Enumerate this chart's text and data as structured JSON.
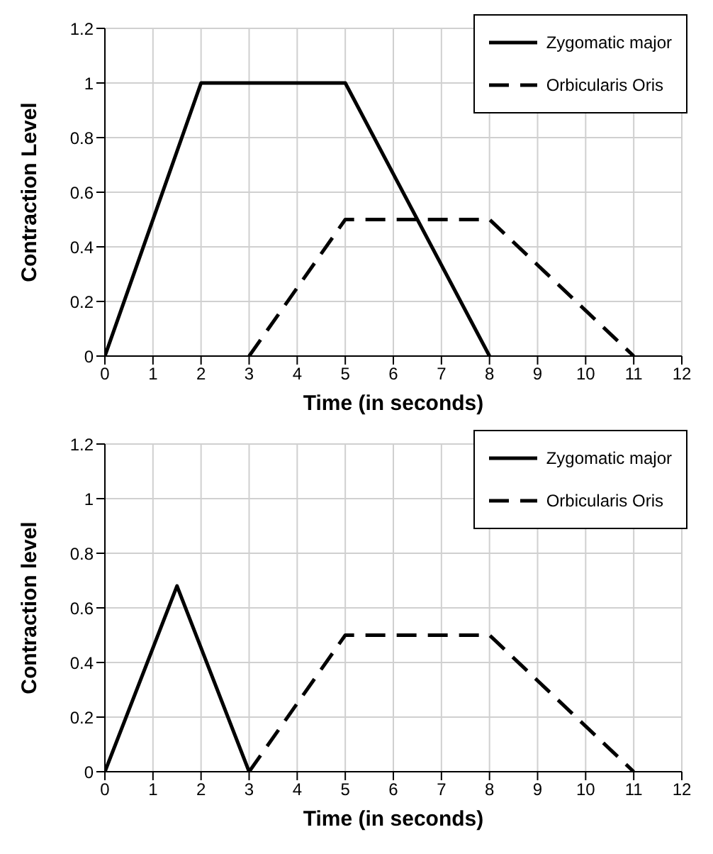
{
  "chart_data": [
    {
      "type": "line",
      "xlabel": "Time (in seconds)",
      "ylabel": "Contraction Level",
      "xlim": [
        0,
        12
      ],
      "xticks": [
        0,
        1,
        2,
        3,
        4,
        5,
        6,
        7,
        8,
        9,
        10,
        11,
        12
      ],
      "ylim": [
        0,
        1.2
      ],
      "yticks": [
        0,
        0.2,
        0.4,
        0.6,
        0.8,
        1,
        1.2
      ],
      "grid": true,
      "legend": "top right",
      "marker": "none",
      "series": [
        {
          "name": "Zygomatic major",
          "color": "#000000",
          "line_style": "solid",
          "x": [
            0,
            2,
            5,
            8
          ],
          "values": [
            0,
            1,
            1,
            0
          ]
        },
        {
          "name": "Orbicularis Oris",
          "color": "#000000",
          "line_style": "dashed",
          "x": [
            3,
            5,
            8,
            11
          ],
          "values": [
            0,
            0.5,
            0.5,
            0
          ]
        }
      ]
    },
    {
      "type": "line",
      "xlabel": "Time (in seconds)",
      "ylabel": "Contraction level",
      "xlim": [
        0,
        12
      ],
      "xticks": [
        0,
        1,
        2,
        3,
        4,
        5,
        6,
        7,
        8,
        9,
        10,
        11,
        12
      ],
      "ylim": [
        0,
        1.2
      ],
      "yticks": [
        0,
        0.2,
        0.4,
        0.6,
        0.8,
        1,
        1.2
      ],
      "grid": true,
      "legend": "top right",
      "marker": "none",
      "series": [
        {
          "name": "Zygomatic major",
          "color": "#000000",
          "line_style": "solid",
          "x": [
            0,
            1.5,
            3
          ],
          "values": [
            0,
            0.68,
            0
          ]
        },
        {
          "name": "Orbicularis Oris",
          "color": "#000000",
          "line_style": "dashed",
          "x": [
            3,
            5,
            8,
            11
          ],
          "values": [
            0,
            0.5,
            0.5,
            0
          ]
        }
      ]
    }
  ]
}
